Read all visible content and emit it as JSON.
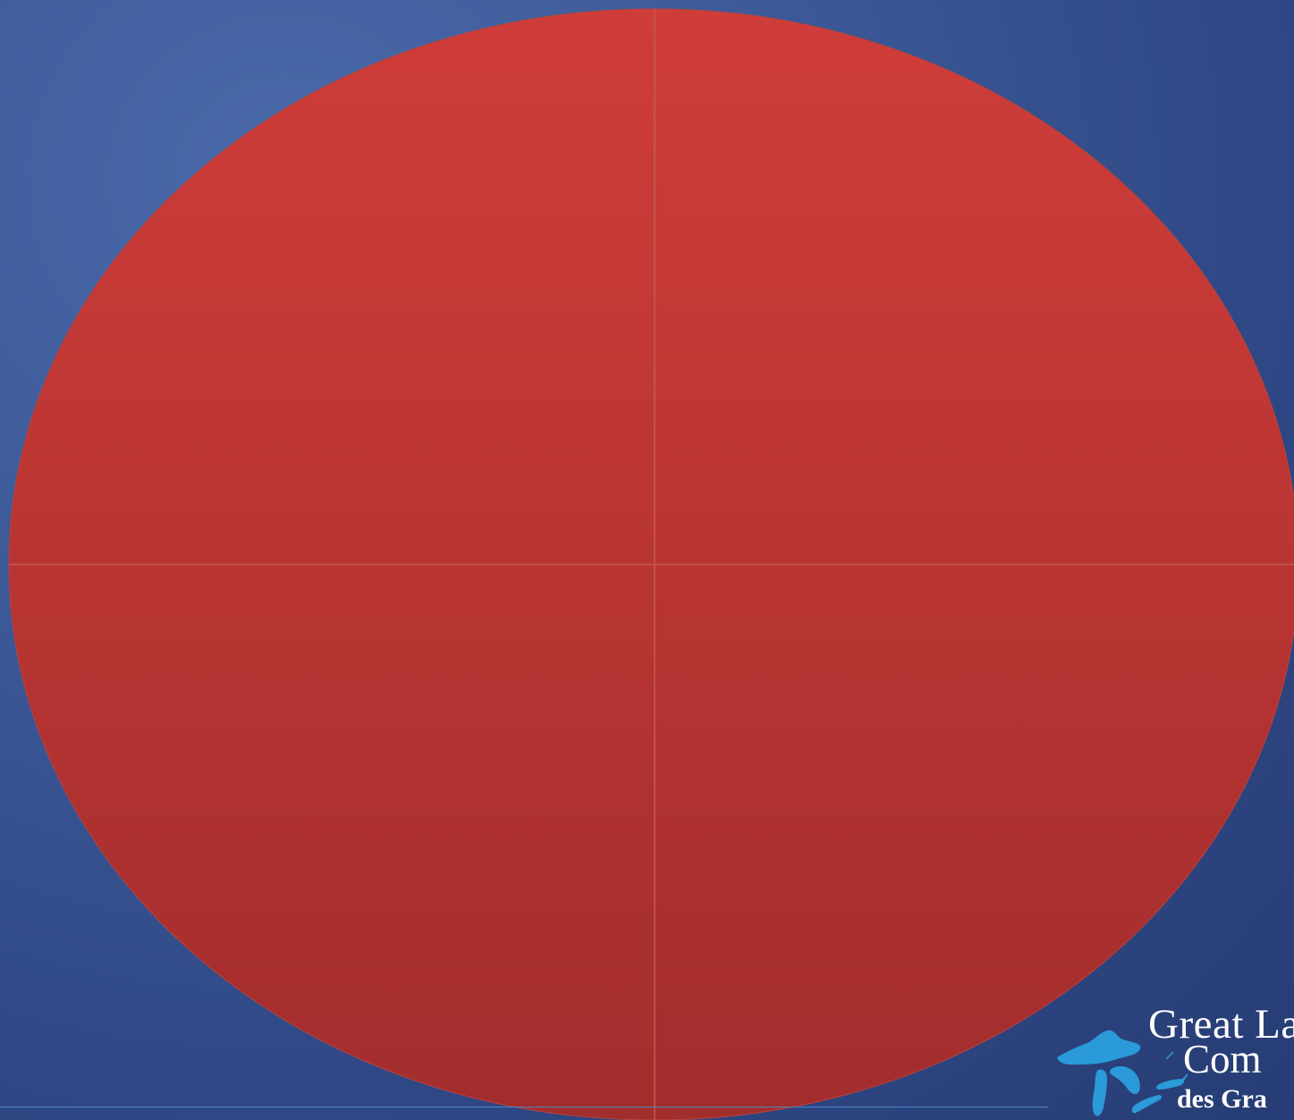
{
  "slide": {
    "background_color": "#3c5897",
    "footer_rule_color": "#4f86c6"
  },
  "shape": {
    "fill_top": "#cf3d39",
    "fill_bottom": "#a22d2d",
    "divider_color": "#c65a52"
  },
  "logo": {
    "line1": "Great La",
    "line2": "Com",
    "line3": "des Gra",
    "icon": "great-lakes-map-icon",
    "icon_color": "#2a9ad8"
  }
}
